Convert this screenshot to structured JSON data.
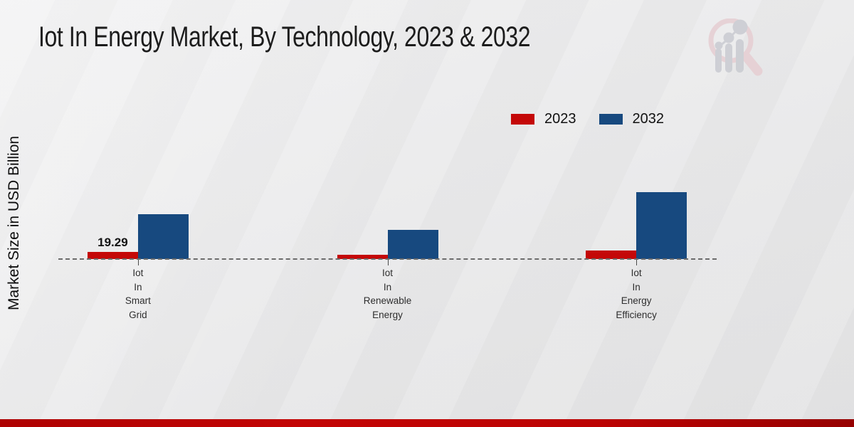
{
  "chart_data": {
    "type": "bar",
    "title": "Iot In Energy Market, By Technology, 2023 & 2032",
    "xlabel": "",
    "ylabel": "Market Size in USD Billion",
    "categories": [
      "Iot In Smart Grid",
      "Iot In Renewable Energy",
      "Iot In Energy Efficiency"
    ],
    "series": [
      {
        "name": "2023",
        "color": "#c40808",
        "values": [
          19.29,
          11.6,
          23.2
        ]
      },
      {
        "name": "2032",
        "color": "#17497f",
        "values": [
          121,
          79,
          181
        ]
      }
    ],
    "data_labels": [
      {
        "series": "2023",
        "category_index": 0,
        "text": "19.29"
      }
    ],
    "ylim": [
      0,
      200
    ],
    "grid": false,
    "baseline_style": "dashed",
    "legend_position": "top-right"
  },
  "legend": {
    "items": [
      {
        "label": "2023",
        "color": "#c40808"
      },
      {
        "label": "2032",
        "color": "#17497f"
      }
    ]
  },
  "branding": {
    "logo_icon": "magnifier-bar-chart-logo",
    "accent_bar_color": "#b30202",
    "logo_ring_color": "#e6ced2",
    "logo_bars_color": "#c9cbd1"
  }
}
